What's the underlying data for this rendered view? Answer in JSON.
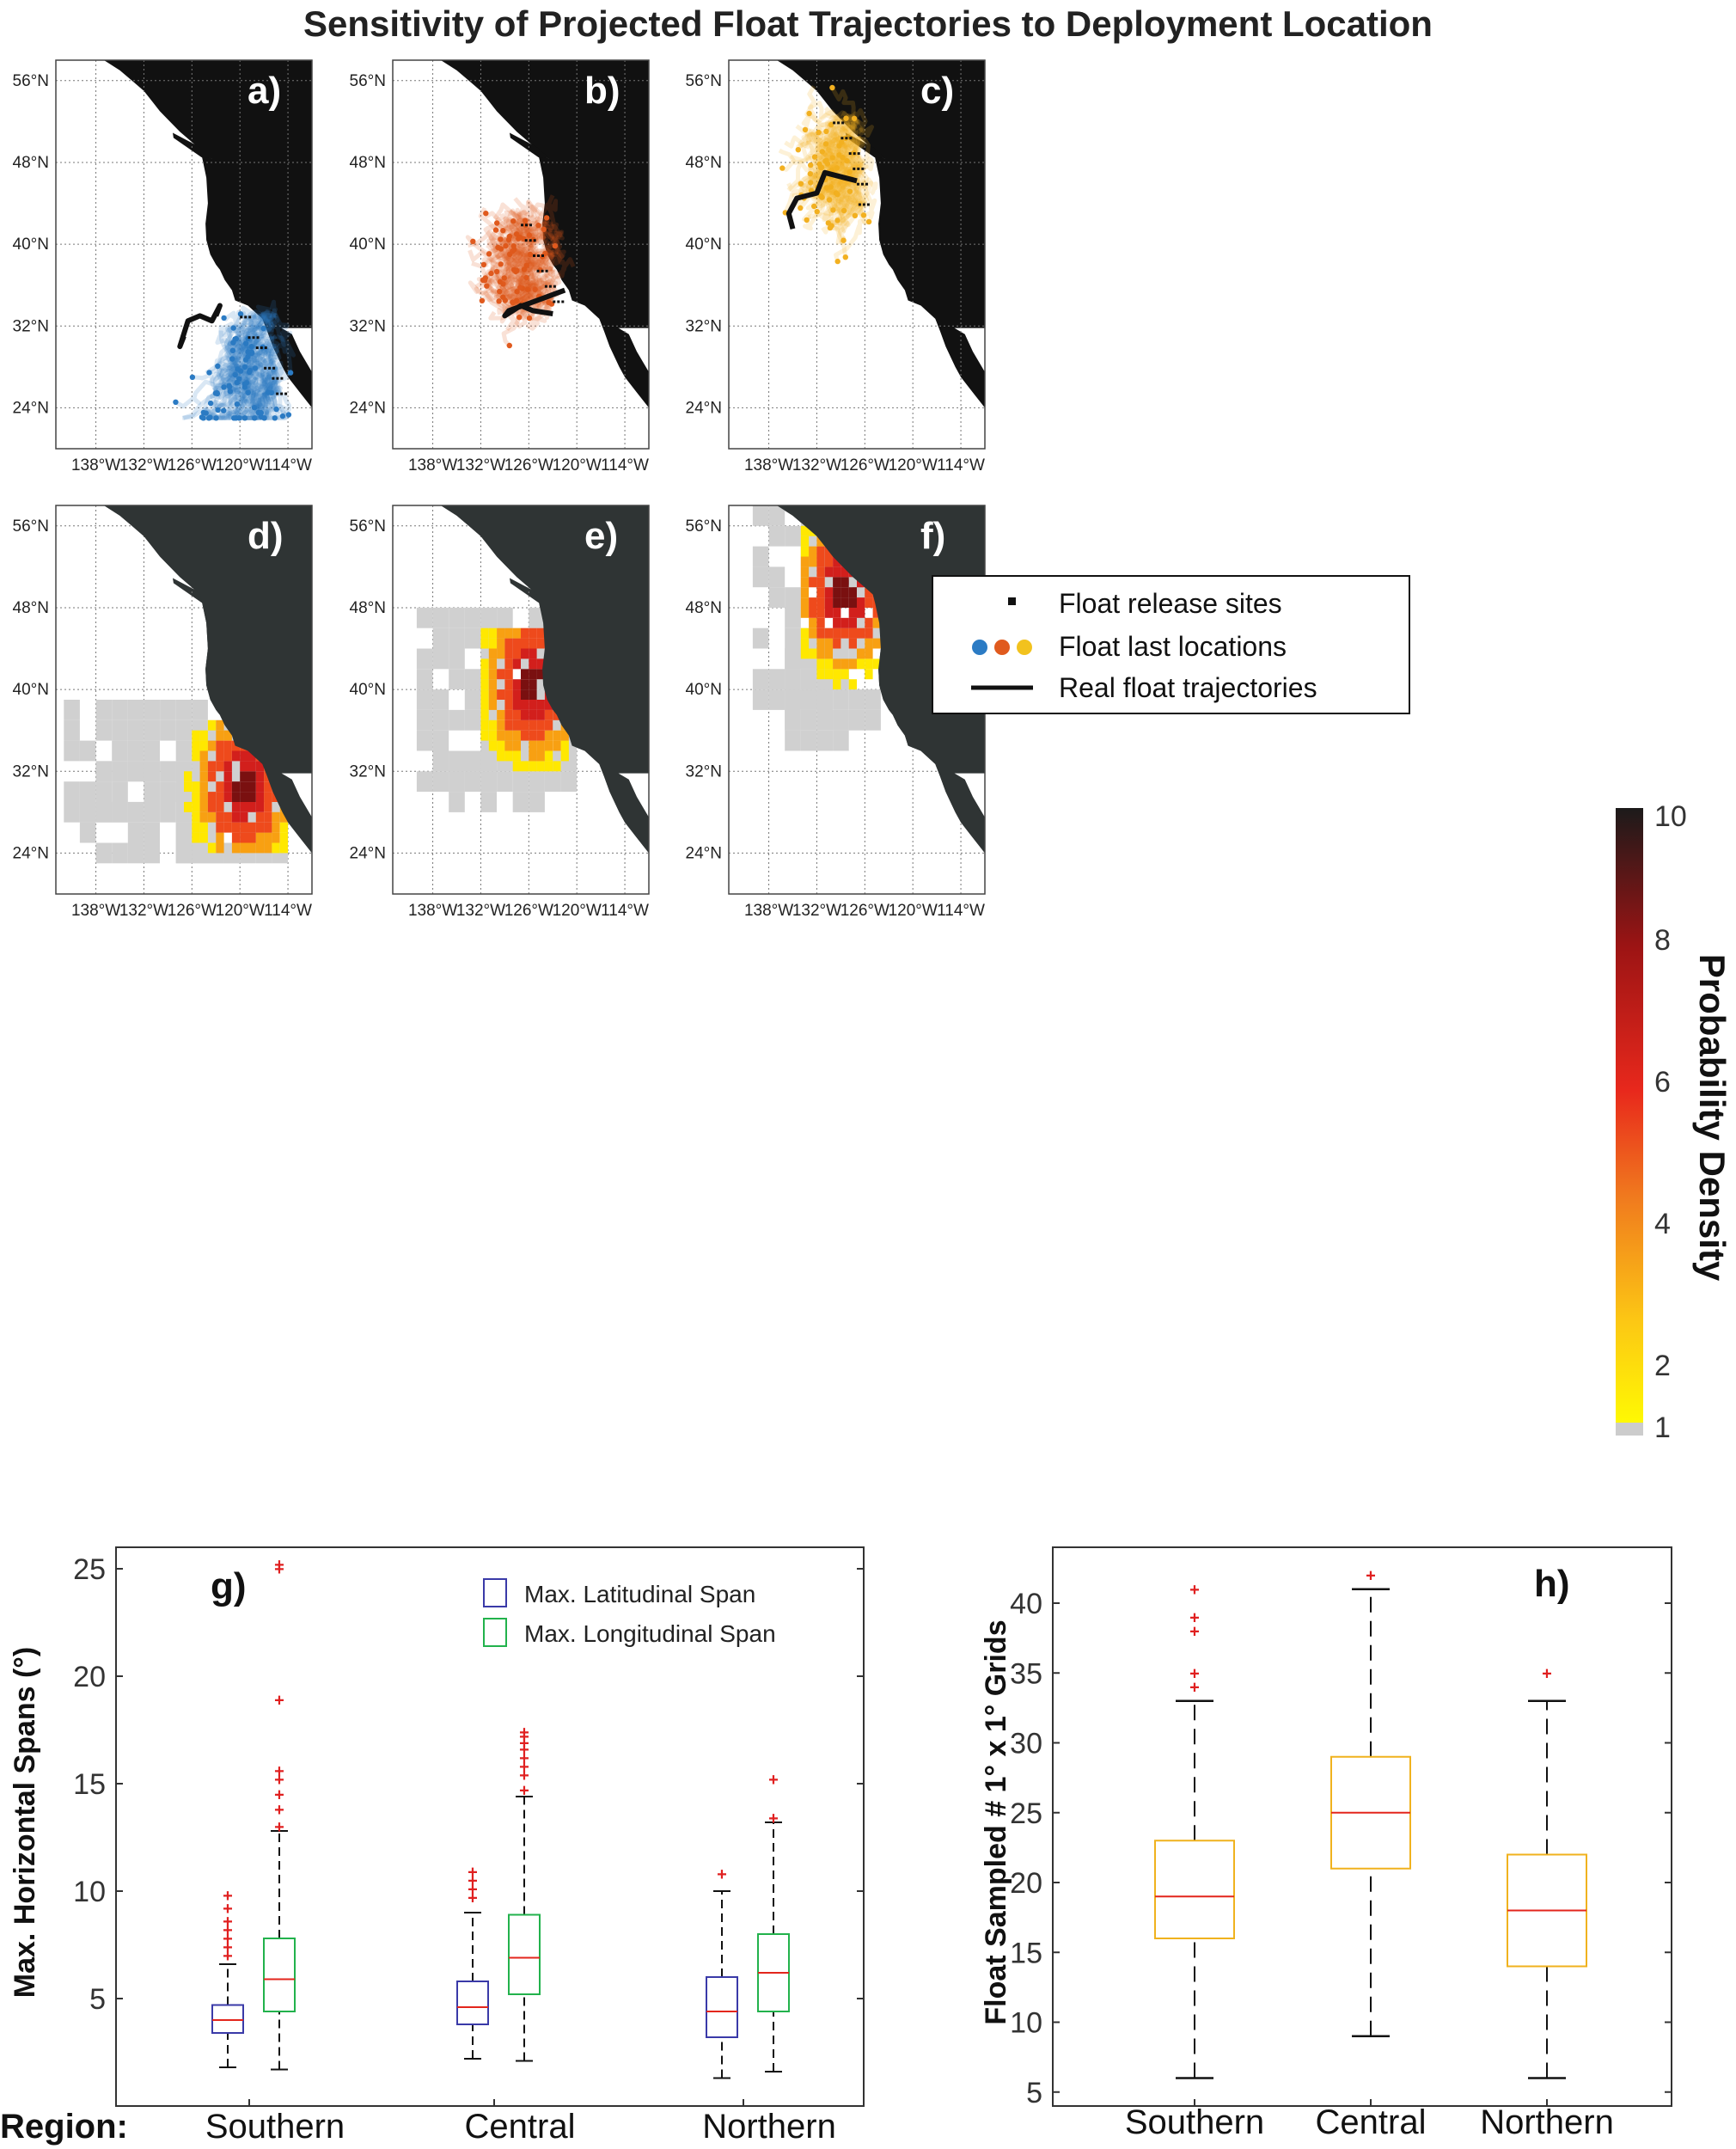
{
  "title": "Sensitivity of Projected Float Trajectories to Deployment Location",
  "colors": {
    "blue": "#2b7bc4",
    "orange": "#e05a1e",
    "yellow": "#f2b020",
    "land": "#111111",
    "land_dark": "#2f3434",
    "lat_box": "#3a3aa8",
    "lon_box": "#22b24c",
    "median": "#e3261c",
    "h_box": "#f0b21e",
    "outlier": "#e02020"
  },
  "map_axes": {
    "lat_ticks": [
      "56°N",
      "48°N",
      "40°N",
      "32°N",
      "24°N"
    ],
    "lon_ticks": [
      "138°W",
      "132°W",
      "126°W",
      "120°W",
      "114°W"
    ]
  },
  "panel_labels": [
    "a)",
    "b)",
    "c)",
    "d)",
    "e)",
    "f)"
  ],
  "legend": {
    "release": "Float release sites",
    "last": "Float last locations",
    "real": "Real float trajectories"
  },
  "colorbar": {
    "label": "Probability Density",
    "ticks": [
      "10",
      "8",
      "6",
      "4",
      "2",
      "1"
    ]
  },
  "chart_data": [
    {
      "type": "box",
      "panel": "g)",
      "ylabel": "Max. Horizontal Spans (°)",
      "xlabel_prefix": "Region:",
      "categories": [
        "Southern",
        "Central",
        "Northern"
      ],
      "ylim": [
        0,
        26
      ],
      "yticks": [
        "5",
        "10",
        "15",
        "20",
        "25"
      ],
      "legend": [
        "Max. Latitudinal Span",
        "Max. Longitudinal Span"
      ],
      "series": [
        {
          "name": "Max. Latitudinal Span",
          "boxes": [
            {
              "whisker_low": 1.8,
              "q1": 3.4,
              "median": 4.0,
              "q3": 4.7,
              "whisker_high": 6.6,
              "outliers": [
                7.0,
                7.4,
                7.8,
                8.2,
                8.6,
                9.2,
                9.8
              ]
            },
            {
              "whisker_low": 2.2,
              "q1": 3.8,
              "median": 4.6,
              "q3": 5.8,
              "whisker_high": 9.0,
              "outliers": [
                9.7,
                10.1,
                10.5,
                10.9
              ]
            },
            {
              "whisker_low": 1.3,
              "q1": 3.2,
              "median": 4.4,
              "q3": 6.0,
              "whisker_high": 10.0,
              "outliers": [
                10.8
              ]
            }
          ]
        },
        {
          "name": "Max. Longitudinal Span",
          "boxes": [
            {
              "whisker_low": 1.7,
              "q1": 4.4,
              "median": 5.9,
              "q3": 7.8,
              "whisker_high": 12.8,
              "outliers": [
                13.0,
                13.8,
                14.5,
                15.2,
                15.6,
                18.9,
                25.0,
                25.2
              ]
            },
            {
              "whisker_low": 2.1,
              "q1": 5.2,
              "median": 6.9,
              "q3": 8.9,
              "whisker_high": 14.4,
              "outliers": [
                14.7,
                15.4,
                15.8,
                16.2,
                16.6,
                16.9,
                17.2,
                17.4
              ]
            },
            {
              "whisker_low": 1.6,
              "q1": 4.4,
              "median": 6.2,
              "q3": 8.0,
              "whisker_high": 13.2,
              "outliers": [
                13.4,
                15.2
              ]
            }
          ]
        }
      ]
    },
    {
      "type": "box",
      "panel": "h)",
      "ylabel": "Float Sampled # 1° x 1° Grids",
      "categories": [
        "Southern",
        "Central",
        "Northern"
      ],
      "ylim": [
        4,
        44
      ],
      "yticks": [
        "5",
        "10",
        "15",
        "20",
        "25",
        "30",
        "35",
        "40"
      ],
      "boxes": [
        {
          "whisker_low": 6,
          "q1": 16,
          "median": 19,
          "q3": 23,
          "whisker_high": 33,
          "outliers": [
            34,
            35,
            38,
            39,
            41
          ]
        },
        {
          "whisker_low": 9,
          "q1": 21,
          "median": 25,
          "q3": 29,
          "whisker_high": 41,
          "outliers": [
            42
          ]
        },
        {
          "whisker_low": 6,
          "q1": 14,
          "median": 18,
          "q3": 22,
          "whisker_high": 33,
          "outliers": [
            35
          ]
        }
      ]
    }
  ]
}
